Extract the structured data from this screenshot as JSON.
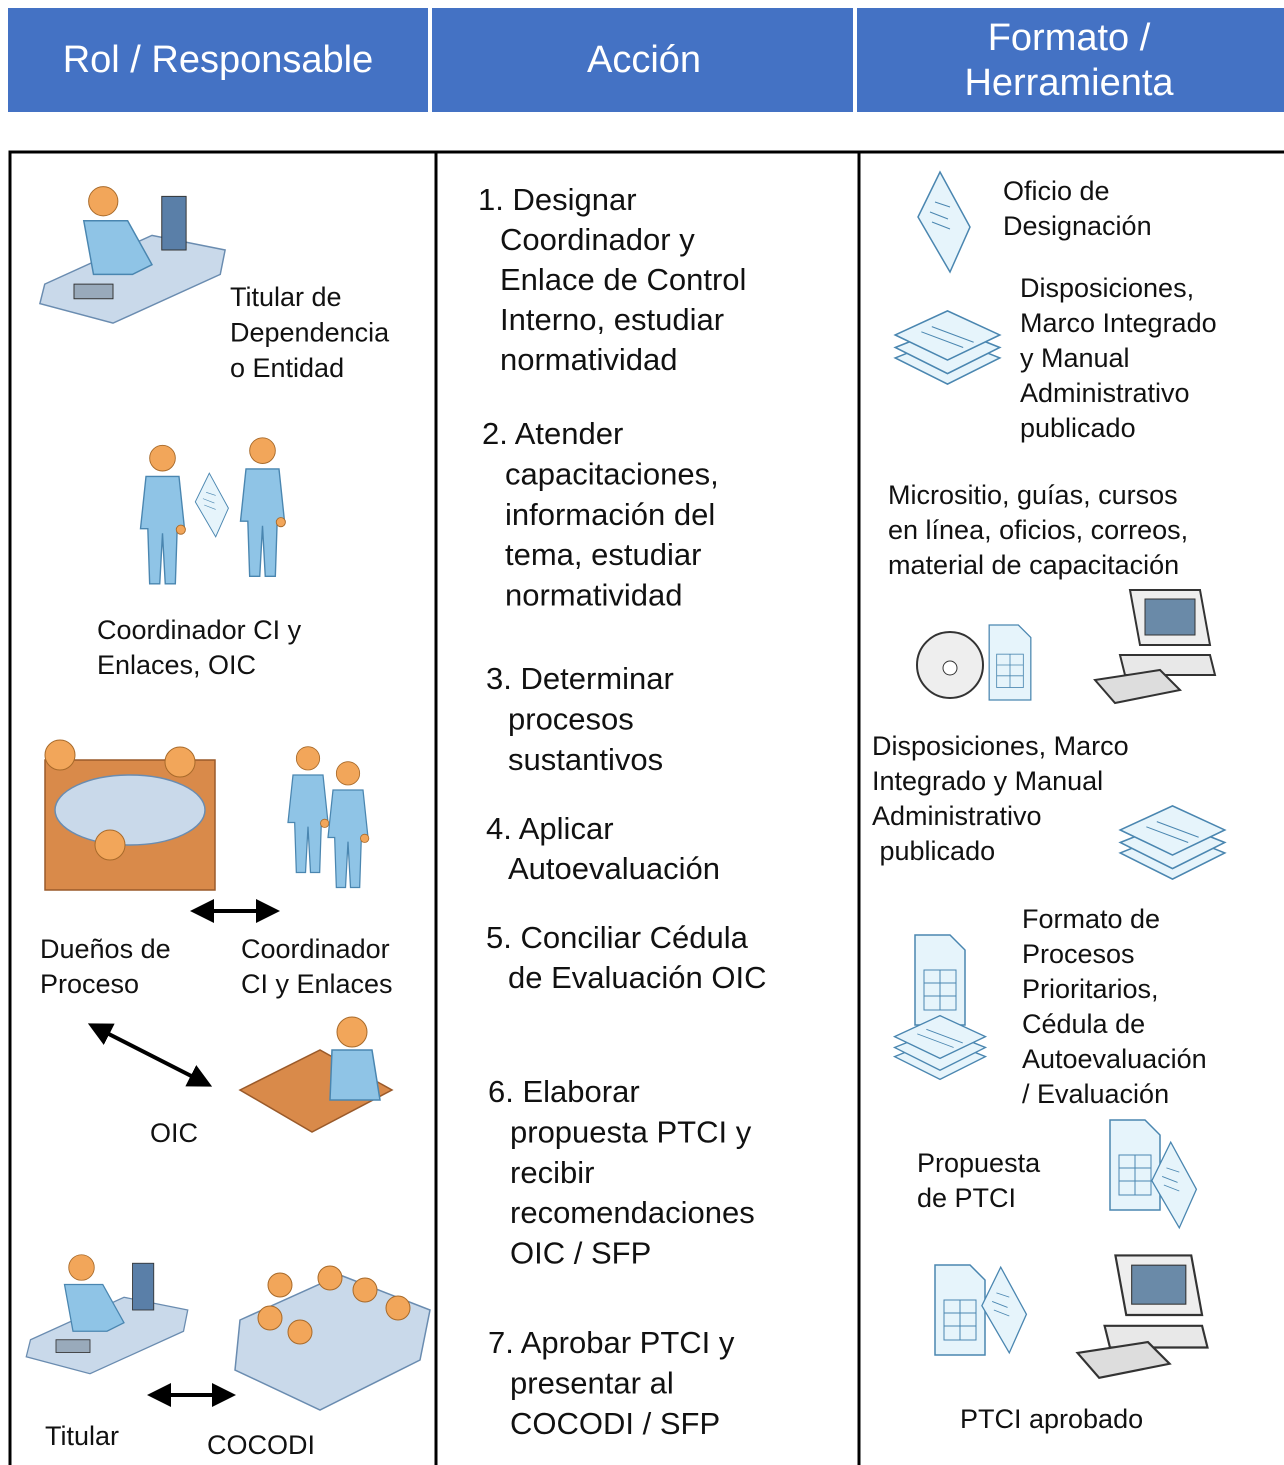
{
  "header": {
    "columns": [
      {
        "lines": [
          "Rol / Responsable"
        ]
      },
      {
        "lines": [
          "Acción"
        ]
      },
      {
        "lines": [
          "Formato /",
          "Herramienta"
        ]
      }
    ]
  },
  "roles": [
    {
      "lines": [
        "Titular de",
        "Dependencia",
        "o Entidad"
      ]
    },
    {
      "lines": [
        "Coordinador CI y",
        "Enlaces, OIC"
      ]
    },
    {
      "lines": [
        "Dueños de",
        "Proceso"
      ]
    },
    {
      "lines": [
        "Coordinador",
        "CI y Enlaces"
      ]
    },
    {
      "lines": [
        "OIC"
      ]
    },
    {
      "lines": [
        "Titular"
      ]
    },
    {
      "lines": [
        "COCODI"
      ]
    }
  ],
  "actions": [
    {
      "lines": [
        "1. Designar",
        "Coordinador y",
        "Enlace de Control",
        "Interno, estudiar",
        "normatividad"
      ]
    },
    {
      "lines": [
        "2. Atender",
        "capacitaciones,",
        "información del",
        "tema, estudiar",
        "normatividad"
      ]
    },
    {
      "lines": [
        "3. Determinar",
        "procesos",
        "sustantivos"
      ]
    },
    {
      "lines": [
        "4. Aplicar",
        "Autoevaluación"
      ]
    },
    {
      "lines": [
        "5. Conciliar Cédula",
        "de Evaluación OIC"
      ]
    },
    {
      "lines": [
        "6. Elaborar",
        "propuesta PTCI y",
        "recibir",
        "recomendaciones",
        "OIC / SFP"
      ]
    },
    {
      "lines": [
        "7. Aprobar PTCI y",
        "presentar al",
        "COCODI / SFP"
      ]
    }
  ],
  "formats": [
    {
      "lines": [
        "Oficio de",
        "Designación"
      ]
    },
    {
      "lines": [
        "Disposiciones,",
        "Marco Integrado",
        "y Manual",
        "Administrativo",
        "publicado"
      ]
    },
    {
      "lines": [
        "Micrositio, guías, cursos",
        "en línea, oficios, correos,",
        "material de capacitación"
      ]
    },
    {
      "lines": [
        "Disposiciones, Marco",
        "Integrado y Manual",
        "Administrativo",
        " publicado"
      ]
    },
    {
      "lines": [
        "Formato de",
        "Procesos",
        "Prioritarios,",
        "Cédula de",
        "Autoevaluación",
        "/ Evaluación"
      ]
    },
    {
      "lines": [
        "Propuesta",
        "de PTCI"
      ]
    },
    {
      "lines": [
        "PTCI aprobado"
      ]
    }
  ]
}
